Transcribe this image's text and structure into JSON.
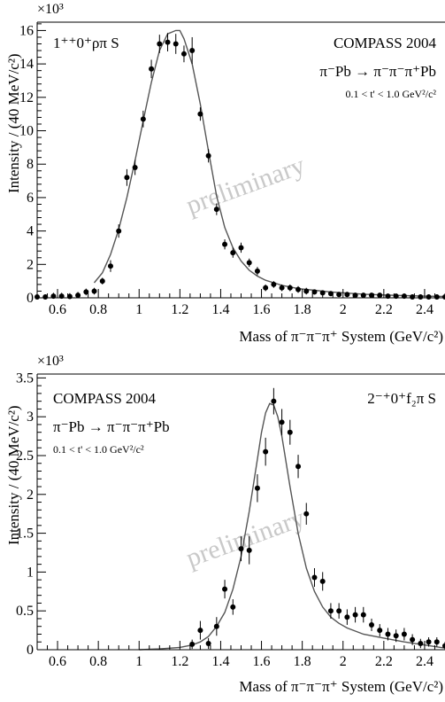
{
  "chart_data": [
    {
      "type": "scatter",
      "wave_label": "1⁺⁺0⁺ρπ S",
      "experiment_label": "COMPASS 2004",
      "reaction_label": "π⁻Pb → π⁻π⁻π⁺Pb",
      "tcut_label": "0.1 < t' < 1.0 GeV²/c²",
      "watermark": "preliminary",
      "xlabel": "Mass of π⁻π⁻π⁺ System (GeV/c²)",
      "ylabel": "Intensity / (40 MeV/c²)",
      "y_multiplier": "×10³",
      "xlim": [
        0.5,
        2.5
      ],
      "ylim": [
        0,
        16.5
      ],
      "xticks": [
        0.6,
        0.8,
        1.0,
        1.2,
        1.4,
        1.6,
        1.8,
        2.0,
        2.2,
        2.4
      ],
      "xtick_labels": [
        "0.6",
        "0.8",
        "1",
        "1.2",
        "1.4",
        "1.6",
        "1.8",
        "2",
        "2.2",
        "2.4"
      ],
      "yticks": [
        0,
        2,
        4,
        6,
        8,
        10,
        12,
        14,
        16
      ],
      "ytick_labels": [
        "0",
        "2",
        "4",
        "6",
        "8",
        "10",
        "12",
        "14",
        "16"
      ],
      "grid": false,
      "series": [
        {
          "x": [
            0.5,
            0.54,
            0.58,
            0.62,
            0.66,
            0.7,
            0.74,
            0.78,
            0.82,
            0.86,
            0.9,
            0.94,
            0.98,
            1.02,
            1.06,
            1.1,
            1.14,
            1.18,
            1.22,
            1.26,
            1.3,
            1.34,
            1.38,
            1.42,
            1.46,
            1.5,
            1.54,
            1.58,
            1.62,
            1.66,
            1.7,
            1.74,
            1.78,
            1.82,
            1.86,
            1.9,
            1.94,
            1.98,
            2.02,
            2.06,
            2.1,
            2.14,
            2.18,
            2.22,
            2.26,
            2.3,
            2.34,
            2.38,
            2.42,
            2.46,
            2.5
          ],
          "y": [
            0.05,
            0.05,
            0.1,
            0.1,
            0.08,
            0.15,
            0.35,
            0.4,
            1.0,
            1.9,
            4.0,
            7.2,
            7.8,
            10.7,
            13.7,
            15.2,
            15.3,
            15.2,
            14.6,
            14.8,
            11.0,
            8.5,
            5.3,
            3.2,
            2.7,
            3.0,
            2.1,
            1.6,
            0.6,
            0.8,
            0.6,
            0.6,
            0.5,
            0.4,
            0.35,
            0.3,
            0.25,
            0.2,
            0.2,
            0.15,
            0.15,
            0.15,
            0.15,
            0.1,
            0.1,
            0.1,
            0.05,
            0.05,
            0.05,
            0.05,
            0.05
          ],
          "err": [
            0.15,
            0.15,
            0.2,
            0.2,
            0.2,
            0.2,
            0.2,
            0.2,
            0.2,
            0.35,
            0.4,
            0.5,
            0.45,
            0.5,
            0.55,
            0.55,
            0.55,
            0.6,
            0.5,
            0.8,
            0.4,
            0.4,
            0.35,
            0.3,
            0.3,
            0.3,
            0.25,
            0.25,
            0.2,
            0.2,
            0.2,
            0.2,
            0.2,
            0.2,
            0.15,
            0.15,
            0.15,
            0.15,
            0.15,
            0.15,
            0.15,
            0.15,
            0.15,
            0.15,
            0.15,
            0.15,
            0.15,
            0.15,
            0.15,
            0.15,
            0.15
          ]
        }
      ],
      "fit": {
        "x": [
          0.78,
          0.82,
          0.86,
          0.9,
          0.94,
          0.98,
          1.02,
          1.06,
          1.1,
          1.14,
          1.18,
          1.2,
          1.22,
          1.26,
          1.3,
          1.34,
          1.38,
          1.42,
          1.46,
          1.5,
          1.54,
          1.58,
          1.62,
          1.66,
          1.7,
          1.78,
          1.86,
          1.94,
          2.02,
          2.1,
          2.2,
          2.3,
          2.4,
          2.5
        ],
        "y": [
          0.9,
          1.5,
          2.6,
          4.1,
          6.0,
          8.2,
          10.6,
          12.9,
          14.8,
          15.8,
          16.0,
          16.0,
          15.5,
          14.0,
          11.6,
          8.8,
          6.1,
          4.2,
          3.0,
          2.2,
          1.65,
          1.3,
          1.05,
          0.9,
          0.75,
          0.55,
          0.45,
          0.35,
          0.28,
          0.22,
          0.17,
          0.13,
          0.1,
          0.08
        ]
      }
    },
    {
      "type": "scatter",
      "wave_label": "2⁻⁺0⁺f₂π S",
      "experiment_label": "COMPASS 2004",
      "reaction_label": "π⁻Pb → π⁻π⁻π⁺Pb",
      "tcut_label": "0.1 < t' < 1.0 GeV²/c²",
      "watermark": "preliminary",
      "xlabel": "Mass of π⁻π⁻π⁺ System (GeV/c²)",
      "ylabel": "Intensity / (40 MeV/c²)",
      "y_multiplier": "×10³",
      "xlim": [
        0.5,
        2.5
      ],
      "ylim": [
        0,
        3.55
      ],
      "xticks": [
        0.6,
        0.8,
        1.0,
        1.2,
        1.4,
        1.6,
        1.8,
        2.0,
        2.2,
        2.4
      ],
      "xtick_labels": [
        "0.6",
        "0.8",
        "1",
        "1.2",
        "1.4",
        "1.6",
        "1.8",
        "2",
        "2.2",
        "2.4"
      ],
      "yticks": [
        0,
        0.5,
        1.0,
        1.5,
        2.0,
        2.5,
        3.0,
        3.5
      ],
      "ytick_labels": [
        "0",
        "0.5",
        "1",
        "1.5",
        "2",
        "2.5",
        "3",
        "3.5"
      ],
      "grid": false,
      "series": [
        {
          "x": [
            1.26,
            1.3,
            1.34,
            1.38,
            1.42,
            1.46,
            1.5,
            1.54,
            1.58,
            1.62,
            1.66,
            1.7,
            1.74,
            1.78,
            1.82,
            1.86,
            1.9,
            1.94,
            1.98,
            2.02,
            2.06,
            2.1,
            2.14,
            2.18,
            2.22,
            2.26,
            2.3,
            2.34,
            2.38,
            2.42,
            2.46,
            2.5
          ],
          "y": [
            0.07,
            0.25,
            0.08,
            0.3,
            0.78,
            0.55,
            1.3,
            1.28,
            2.08,
            2.55,
            3.2,
            2.93,
            2.8,
            2.36,
            1.75,
            0.93,
            0.88,
            0.5,
            0.5,
            0.42,
            0.45,
            0.45,
            0.32,
            0.25,
            0.2,
            0.18,
            0.2,
            0.13,
            0.08,
            0.1,
            0.1,
            0.05
          ],
          "err": [
            0.06,
            0.12,
            0.07,
            0.12,
            0.12,
            0.1,
            0.16,
            0.18,
            0.18,
            0.18,
            0.17,
            0.17,
            0.16,
            0.15,
            0.14,
            0.12,
            0.12,
            0.1,
            0.1,
            0.1,
            0.1,
            0.1,
            0.08,
            0.08,
            0.08,
            0.08,
            0.08,
            0.07,
            0.06,
            0.06,
            0.06,
            0.05
          ]
        }
      ],
      "fit": {
        "x": [
          1.0,
          1.1,
          1.2,
          1.26,
          1.3,
          1.34,
          1.38,
          1.42,
          1.46,
          1.5,
          1.54,
          1.58,
          1.6,
          1.62,
          1.64,
          1.66,
          1.68,
          1.7,
          1.74,
          1.78,
          1.82,
          1.86,
          1.9,
          1.94,
          1.98,
          2.02,
          2.06,
          2.1,
          2.2,
          2.3,
          2.4,
          2.5
        ],
        "y": [
          0.0,
          0.01,
          0.03,
          0.06,
          0.1,
          0.17,
          0.3,
          0.48,
          0.78,
          1.2,
          1.78,
          2.45,
          2.8,
          3.05,
          3.17,
          3.15,
          3.0,
          2.75,
          2.1,
          1.5,
          1.05,
          0.75,
          0.55,
          0.42,
          0.34,
          0.28,
          0.24,
          0.2,
          0.15,
          0.1,
          0.06,
          0.02
        ]
      }
    }
  ]
}
